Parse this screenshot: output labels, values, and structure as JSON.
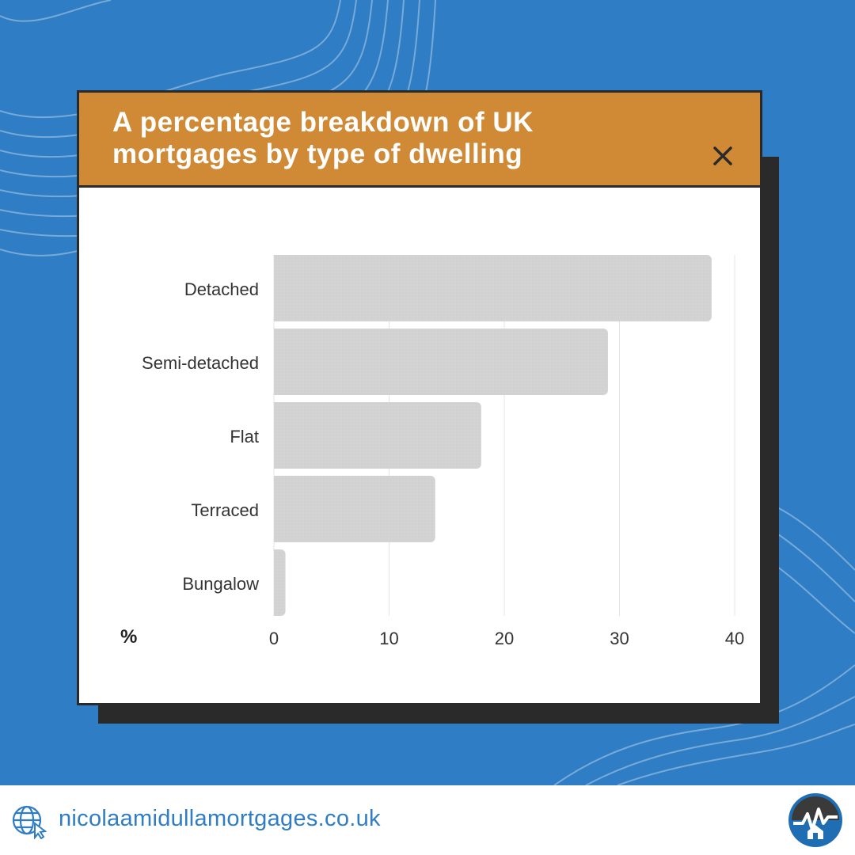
{
  "colors": {
    "background": "#2f7dc4",
    "header": "#d08a35",
    "bar": "#d3d3d3",
    "text": "#333333",
    "link": "#2f7dc4"
  },
  "card": {
    "title": "A percentage breakdown of UK\nmortgages by type of dwelling",
    "close_icon": "close-icon"
  },
  "footer": {
    "website": "nicolaamidullamortgages.co.uk",
    "globe_icon": "globe-cursor-icon",
    "logo_icon": "house-chart-logo-icon"
  },
  "chart_data": {
    "type": "bar",
    "orientation": "horizontal",
    "title": "A percentage breakdown of UK mortgages by type of dwelling",
    "xlabel": "%",
    "ylabel": "",
    "categories": [
      "Detached",
      "Semi-detached",
      "Flat",
      "Terraced",
      "Bungalow"
    ],
    "values": [
      38,
      29,
      18,
      14,
      1
    ],
    "xlim": [
      0,
      40
    ],
    "xticks": [
      0,
      10,
      20,
      30,
      40
    ],
    "grid": true,
    "legend": "none"
  }
}
